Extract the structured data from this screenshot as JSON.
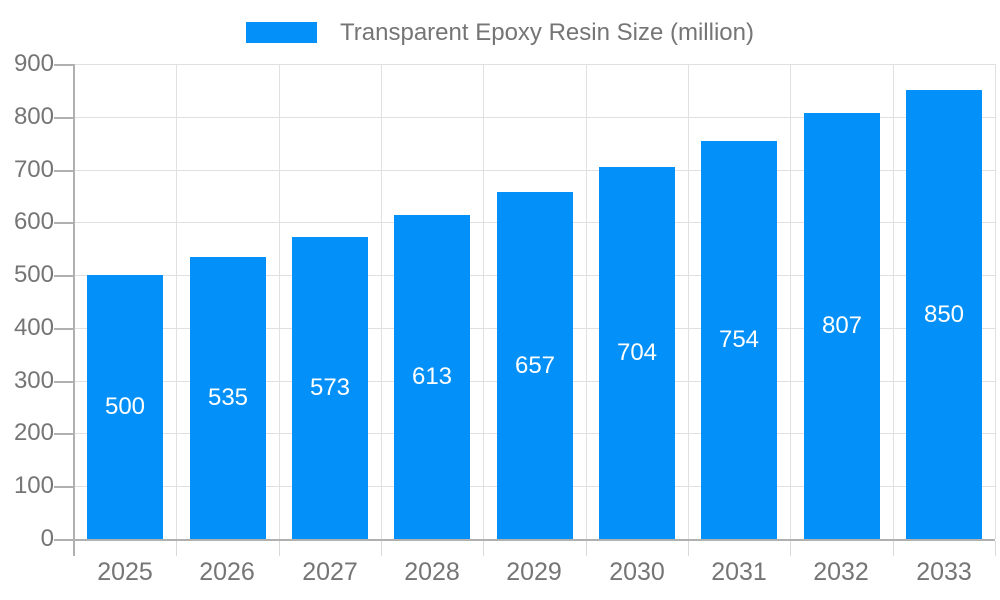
{
  "chart_data": {
    "type": "bar",
    "title": "Transparent Epoxy Resin Size (million)",
    "categories": [
      "2025",
      "2026",
      "2027",
      "2028",
      "2029",
      "2030",
      "2031",
      "2032",
      "2033"
    ],
    "values": [
      500,
      535,
      573,
      613,
      657,
      704,
      754,
      807,
      850
    ],
    "xlabel": "",
    "ylabel": "",
    "ylim": [
      0,
      900
    ],
    "yticks": [
      0,
      100,
      200,
      300,
      400,
      500,
      600,
      700,
      800,
      900
    ],
    "grid": true,
    "legend_position": "top",
    "value_label_position": "inside-center",
    "colors": {
      "bar": "#0390f8",
      "grid": "#e0e0e0",
      "axis": "#b0b0b0",
      "boundary_tick": "#d9d9d9",
      "axis_text": "#757575",
      "value_text": "#ffffff",
      "background": "#ffffff"
    }
  }
}
